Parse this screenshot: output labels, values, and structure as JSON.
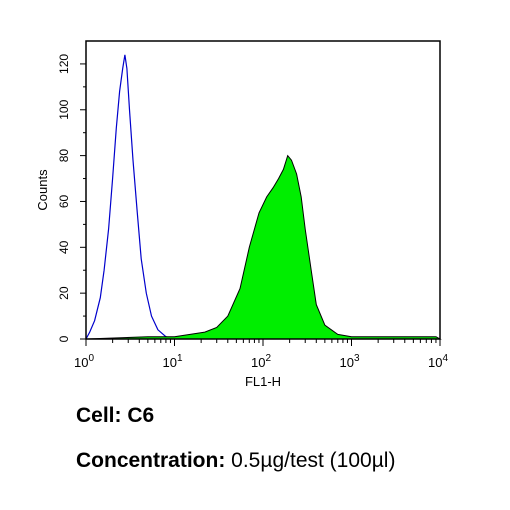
{
  "chart_data": {
    "type": "area",
    "xlabel": "FL1-H",
    "ylabel": "Counts",
    "xscale": "log",
    "xlim": [
      1,
      10000
    ],
    "ylim": [
      0,
      130
    ],
    "x_ticks": [
      {
        "value": 1,
        "base": "10",
        "exp": "0"
      },
      {
        "value": 10,
        "base": "10",
        "exp": "1"
      },
      {
        "value": 100,
        "base": "10",
        "exp": "2"
      },
      {
        "value": 1000,
        "base": "10",
        "exp": "3"
      },
      {
        "value": 10000,
        "base": "10",
        "exp": "4"
      }
    ],
    "y_ticks": [
      0,
      20,
      40,
      60,
      80,
      100,
      120
    ],
    "grid": false,
    "series": [
      {
        "style": "outline",
        "color": "#0000cc",
        "points": [
          [
            1,
            0
          ],
          [
            1.1,
            3
          ],
          [
            1.25,
            8
          ],
          [
            1.45,
            18
          ],
          [
            1.6,
            30
          ],
          [
            1.8,
            48
          ],
          [
            2.0,
            70
          ],
          [
            2.2,
            92
          ],
          [
            2.4,
            108
          ],
          [
            2.6,
            118
          ],
          [
            2.75,
            124
          ],
          [
            2.9,
            118
          ],
          [
            3.1,
            100
          ],
          [
            3.4,
            78
          ],
          [
            3.8,
            55
          ],
          [
            4.2,
            35
          ],
          [
            4.8,
            20
          ],
          [
            5.5,
            10
          ],
          [
            6.5,
            4
          ],
          [
            8,
            1
          ],
          [
            10,
            0
          ]
        ]
      },
      {
        "style": "filled",
        "color": "#00ee00",
        "points": [
          [
            1,
            0
          ],
          [
            5,
            1
          ],
          [
            10,
            1
          ],
          [
            15,
            2
          ],
          [
            22,
            3
          ],
          [
            30,
            5
          ],
          [
            40,
            10
          ],
          [
            55,
            22
          ],
          [
            70,
            40
          ],
          [
            90,
            55
          ],
          [
            110,
            62
          ],
          [
            130,
            66
          ],
          [
            150,
            70
          ],
          [
            170,
            74
          ],
          [
            190,
            80
          ],
          [
            210,
            78
          ],
          [
            240,
            72
          ],
          [
            270,
            62
          ],
          [
            300,
            48
          ],
          [
            350,
            30
          ],
          [
            400,
            15
          ],
          [
            500,
            6
          ],
          [
            700,
            2
          ],
          [
            1000,
            1
          ],
          [
            3000,
            1
          ],
          [
            9000,
            1
          ],
          [
            10000,
            0
          ]
        ]
      }
    ]
  },
  "caption": {
    "cell_label": "Cell:",
    "cell_value": "C6",
    "concentration_label": "Concentration:",
    "concentration_value": "0.5µg/test (100µl)"
  }
}
